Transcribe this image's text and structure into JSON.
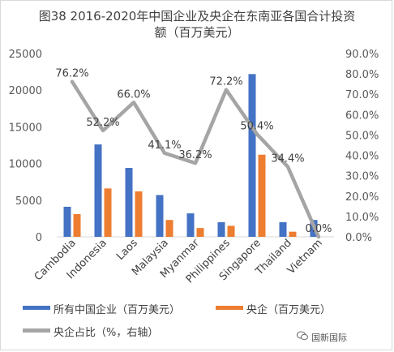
{
  "chart_data": {
    "type": "bar",
    "title_line1": "图38 2016-2020年中国企业及央企在东南亚各国合计投资",
    "title_line2": "额（百万美元）",
    "categories": [
      "Cambodia",
      "Indonesia",
      "Laos",
      "Malaysia",
      "Myanmar",
      "Philippines",
      "Singapore",
      "Thailand",
      "Vietnam"
    ],
    "series": [
      {
        "name": "所有中国企业（百万美元）",
        "type": "bar",
        "axis": "left",
        "color": "#4472c4",
        "values": [
          4100,
          12600,
          9400,
          5700,
          3200,
          2000,
          22200,
          2000,
          2300
        ]
      },
      {
        "name": "央企（百万美元）",
        "type": "bar",
        "axis": "left",
        "color": "#ed7d31",
        "values": [
          3100,
          6600,
          6200,
          2300,
          1200,
          1500,
          11200,
          700,
          0
        ]
      },
      {
        "name": "央企占比（%，右轴）",
        "type": "line",
        "axis": "right",
        "color": "#a5a5a5",
        "values": [
          76.2,
          52.2,
          66.0,
          41.1,
          36.2,
          72.2,
          50.4,
          34.4,
          0.0
        ],
        "labels": [
          "76.2%",
          "52.2%",
          "66.0%",
          "41.1%",
          "36.2%",
          "72.2%",
          "50.4%",
          "34.4%",
          "0.0%"
        ]
      }
    ],
    "y_left": {
      "min": 0,
      "max": 25000,
      "ticks": [
        "0",
        "5000",
        "10000",
        "15000",
        "20000",
        "25000"
      ]
    },
    "y_right": {
      "min": 0,
      "max": 90,
      "ticks": [
        "0.0%",
        "10.0%",
        "20.0%",
        "30.0%",
        "40.0%",
        "50.0%",
        "60.0%",
        "70.0%",
        "80.0%",
        "90.0%"
      ]
    },
    "grid": false,
    "legend_position": "bottom"
  },
  "watermark": "国新国际"
}
